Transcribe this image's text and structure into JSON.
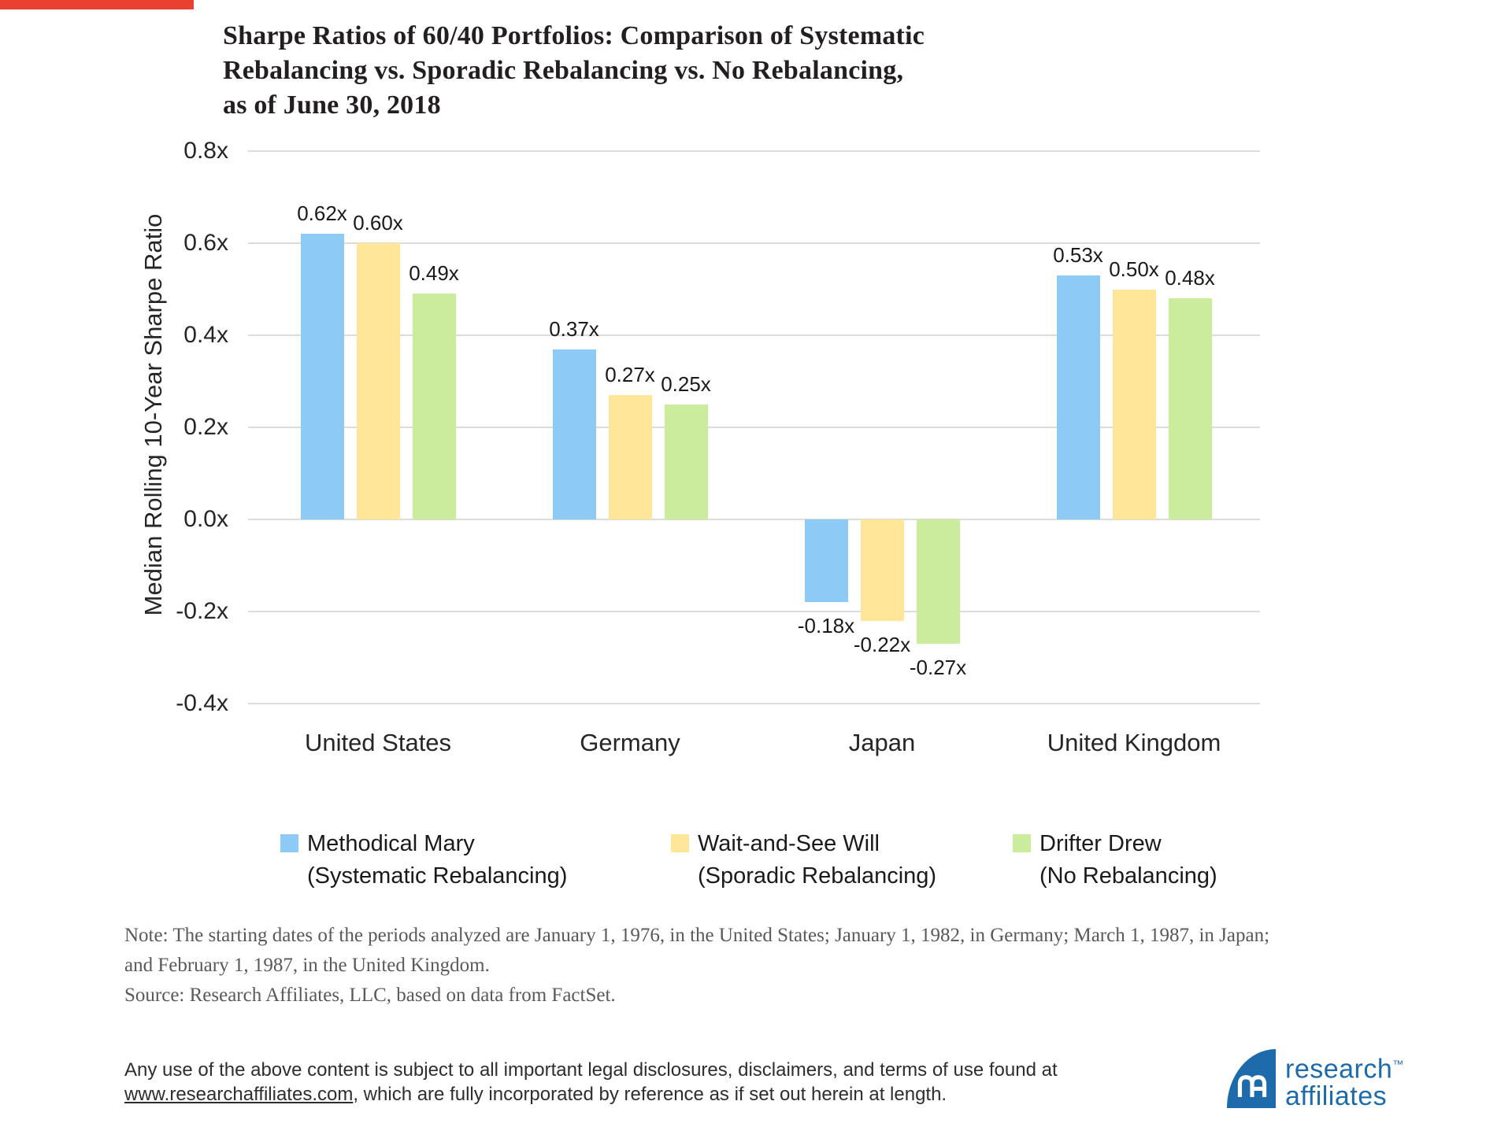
{
  "colors": {
    "accent_red": "#E8412F",
    "series_blue": "#8DCBF6",
    "series_yellow": "#FFE699",
    "series_green": "#CBEC9D",
    "gridline": "#DCDCDC",
    "logo_blue": "#1E6BAB"
  },
  "header": {
    "title_lines": [
      "Sharpe Ratios of 60/40 Portfolios: Comparison of Systematic",
      "Rebalancing vs. Sporadic Rebalancing vs. No Rebalancing,",
      "as of June 30, 2018"
    ]
  },
  "chart_data": {
    "type": "bar",
    "title": "Sharpe Ratios of 60/40 Portfolios: Comparison of Systematic Rebalancing vs. Sporadic Rebalancing vs. No Rebalancing, as of June 30, 2018",
    "ylabel": "Median Rolling 10-Year Sharpe Ratio",
    "ylim": [
      -0.4,
      0.8
    ],
    "grid": true,
    "legend_position": "bottom",
    "yticks": [
      {
        "value": 0.8,
        "label": "0.8x"
      },
      {
        "value": 0.6,
        "label": "0.6x"
      },
      {
        "value": 0.4,
        "label": "0.4x"
      },
      {
        "value": 0.2,
        "label": "0.2x"
      },
      {
        "value": 0.0,
        "label": "0.0x"
      },
      {
        "value": -0.2,
        "label": "-0.2x"
      },
      {
        "value": -0.4,
        "label": "-0.4x"
      }
    ],
    "categories": [
      "United States",
      "Germany",
      "Japan",
      "United Kingdom"
    ],
    "series": [
      {
        "name": "Methodical Mary",
        "qualifier": "(Systematic Rebalancing)",
        "color": "#8DCBF6",
        "values": [
          0.62,
          0.37,
          -0.18,
          0.53
        ],
        "labels": [
          "0.62x",
          "0.37x",
          "-0.18x",
          "0.53x"
        ]
      },
      {
        "name": "Wait-and-See Will",
        "qualifier": "(Sporadic Rebalancing)",
        "color": "#FFE699",
        "values": [
          0.6,
          0.27,
          -0.22,
          0.5
        ],
        "labels": [
          "0.60x",
          "0.27x",
          "-0.22x",
          "0.50x"
        ]
      },
      {
        "name": "Drifter Drew",
        "qualifier": "(No Rebalancing)",
        "color": "#CBEC9D",
        "values": [
          0.49,
          0.25,
          -0.27,
          0.48
        ],
        "labels": [
          "0.49x",
          "0.25x",
          "-0.27x",
          "0.48x"
        ]
      }
    ]
  },
  "footnotes": {
    "note_lines": [
      "Note: The starting dates of the periods analyzed are January 1, 1976, in the United States; January 1, 1982, in Germany; March 1, 1987, in Japan;",
      "and February 1, 1987, in the United Kingdom."
    ],
    "source": "Source: Research Affiliates, LLC, based on data from FactSet."
  },
  "disclaimer": {
    "line1": "Any use of the above content is subject to all important legal disclosures, disclaimers, and terms of use found at",
    "link_text": "www.researchaffiliates.com",
    "line2_rest": ", which are fully incorporated by reference as if set out herein at length."
  },
  "logo": {
    "line1": "research",
    "trademark": "™",
    "line2": "affiliates"
  }
}
